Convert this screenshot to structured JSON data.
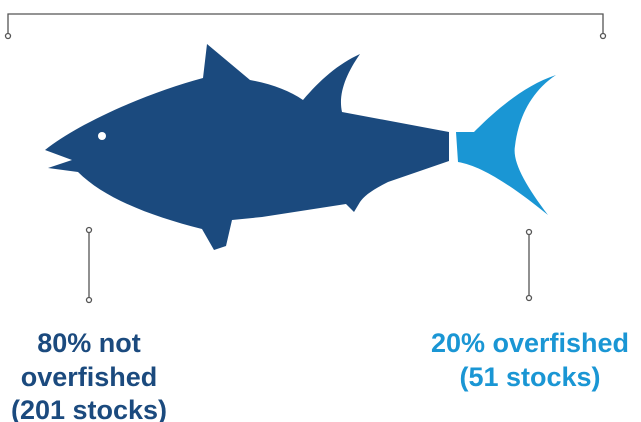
{
  "labels": {
    "not_overfished": {
      "lines": [
        "80% not",
        "overfished",
        "(201 stocks)"
      ]
    },
    "overfished": {
      "lines": [
        "20% overfished",
        "(51 stocks)"
      ]
    }
  }
}
